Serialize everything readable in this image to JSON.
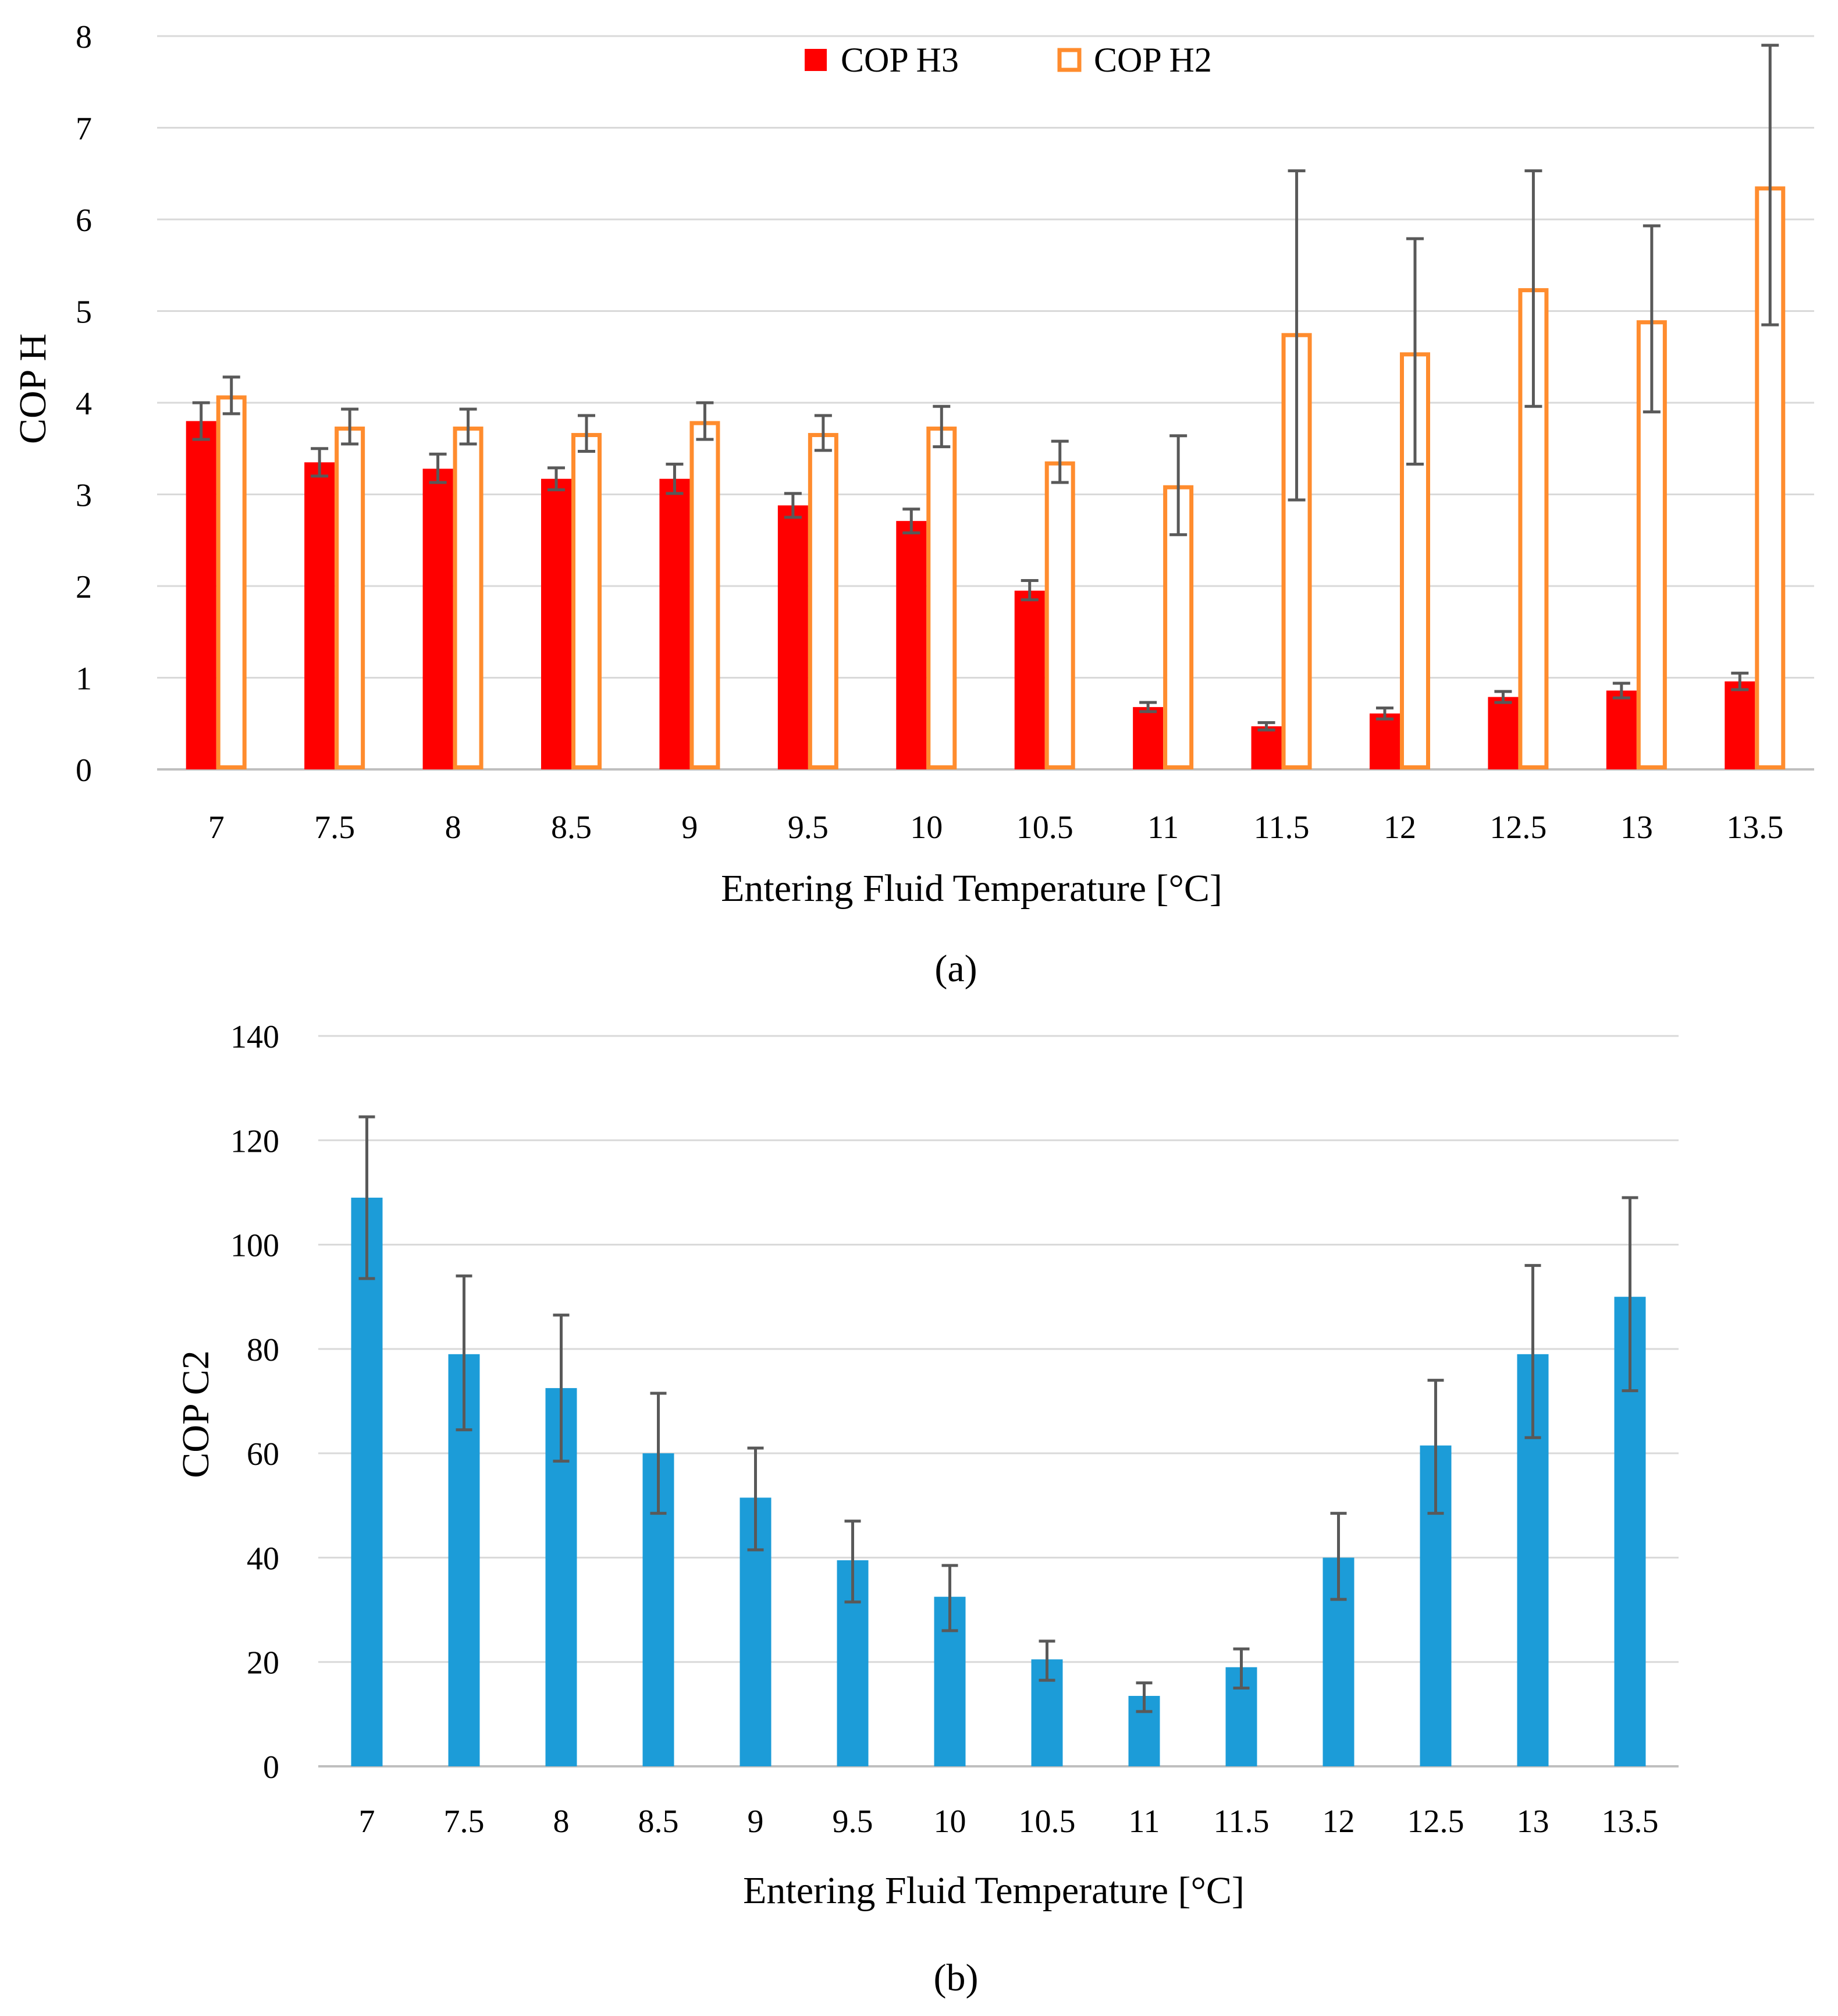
{
  "chart_data": [
    {
      "type": "bar",
      "panel_caption": "(a)",
      "title": "",
      "xlabel": "Entering Fluid Temperature [°C]",
      "ylabel": "COP H",
      "ylim": [
        0,
        8
      ],
      "yticks": [
        "0",
        "1",
        "2",
        "3",
        "4",
        "5",
        "6",
        "7",
        "8"
      ],
      "grid": true,
      "legend_position": "top-center",
      "categories": [
        "7",
        "7.5",
        "8",
        "8.5",
        "9",
        "9.5",
        "10",
        "10.5",
        "11",
        "11.5",
        "12",
        "12.5",
        "13",
        "13.5"
      ],
      "series": [
        {
          "name": "COP H3",
          "style": "filled",
          "color": "#ff0000",
          "values": [
            3.8,
            3.35,
            3.28,
            3.17,
            3.17,
            2.88,
            2.71,
            1.95,
            0.68,
            0.47,
            0.61,
            0.79,
            0.86,
            0.96
          ],
          "err_low": [
            3.6,
            3.2,
            3.13,
            3.05,
            3.01,
            2.75,
            2.58,
            1.85,
            0.63,
            0.43,
            0.55,
            0.73,
            0.78,
            0.87
          ],
          "err_high": [
            4.0,
            3.5,
            3.44,
            3.29,
            3.33,
            3.01,
            2.84,
            2.06,
            0.73,
            0.51,
            0.67,
            0.85,
            0.94,
            1.05
          ]
        },
        {
          "name": "COP H2",
          "style": "outline",
          "color": "#ff8c2e",
          "values": [
            4.08,
            3.74,
            3.74,
            3.67,
            3.8,
            3.67,
            3.74,
            3.36,
            3.1,
            4.76,
            4.55,
            5.25,
            4.9,
            6.36
          ],
          "err_low": [
            3.88,
            3.55,
            3.55,
            3.47,
            3.6,
            3.48,
            3.52,
            3.13,
            2.56,
            2.94,
            3.33,
            3.96,
            3.9,
            4.85
          ],
          "err_high": [
            4.28,
            3.93,
            3.93,
            3.86,
            4.0,
            3.86,
            3.96,
            3.58,
            3.64,
            6.53,
            5.79,
            6.53,
            5.93,
            7.9
          ]
        }
      ]
    },
    {
      "type": "bar",
      "panel_caption": "(b)",
      "title": "",
      "xlabel": "Entering Fluid Temperature [°C]",
      "ylabel": "COP C2",
      "ylim": [
        0,
        140
      ],
      "yticks": [
        "0",
        "20",
        "40",
        "60",
        "80",
        "100",
        "120",
        "140"
      ],
      "grid": true,
      "categories": [
        "7",
        "7.5",
        "8",
        "8.5",
        "9",
        "9.5",
        "10",
        "10.5",
        "11",
        "11.5",
        "12",
        "12.5",
        "13",
        "13.5"
      ],
      "series": [
        {
          "name": "COP C2",
          "style": "filled",
          "color": "#1c9cd8",
          "values": [
            109,
            79,
            72.5,
            60,
            51.5,
            39.5,
            32.5,
            20.5,
            13.5,
            19,
            40,
            61.5,
            79,
            90
          ],
          "err_low": [
            93.5,
            64.5,
            58.5,
            48.5,
            41.5,
            31.5,
            26,
            16.5,
            10.5,
            15,
            32,
            48.5,
            63,
            72
          ],
          "err_high": [
            124.5,
            94,
            86.5,
            71.5,
            61,
            47,
            38.5,
            24,
            16,
            22.5,
            48.5,
            74,
            96,
            109
          ]
        }
      ]
    }
  ]
}
